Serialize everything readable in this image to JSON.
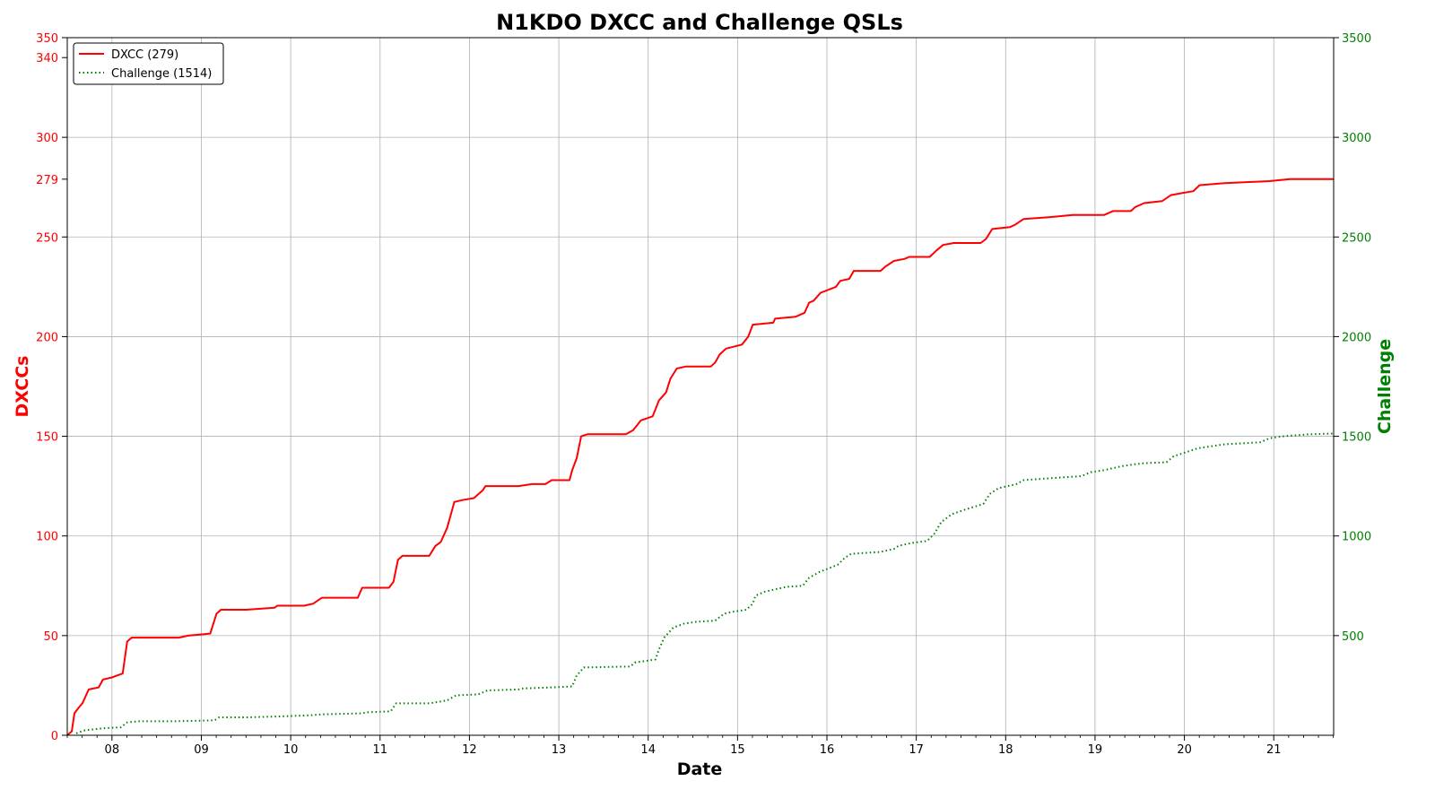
{
  "chart_data": {
    "type": "line",
    "title": "N1KDO DXCC and Challenge QSLs",
    "xlabel": "Date",
    "ylabel_left": "DXCCs",
    "ylabel_right": "Challenge",
    "xlim": [
      7.5,
      21.67
    ],
    "ylim_left": [
      0,
      350
    ],
    "ylim_right": [
      0,
      3500
    ],
    "x_ticks": [
      {
        "value": 8,
        "label": "08"
      },
      {
        "value": 9,
        "label": "09"
      },
      {
        "value": 10,
        "label": "10"
      },
      {
        "value": 11,
        "label": "11"
      },
      {
        "value": 12,
        "label": "12"
      },
      {
        "value": 13,
        "label": "13"
      },
      {
        "value": 14,
        "label": "14"
      },
      {
        "value": 15,
        "label": "15"
      },
      {
        "value": 16,
        "label": "16"
      },
      {
        "value": 17,
        "label": "17"
      },
      {
        "value": 18,
        "label": "18"
      },
      {
        "value": 19,
        "label": "19"
      },
      {
        "value": 20,
        "label": "20"
      },
      {
        "value": 21,
        "label": "21"
      }
    ],
    "y_ticks_left": [
      {
        "value": 0,
        "label": "0"
      },
      {
        "value": 50,
        "label": "50"
      },
      {
        "value": 100,
        "label": "100"
      },
      {
        "value": 150,
        "label": "150"
      },
      {
        "value": 200,
        "label": "200"
      },
      {
        "value": 250,
        "label": "250"
      },
      {
        "value": 279,
        "label": "279"
      },
      {
        "value": 300,
        "label": "300"
      },
      {
        "value": 340,
        "label": "340"
      },
      {
        "value": 350,
        "label": "350"
      }
    ],
    "y_ticks_right": [
      {
        "value": 500,
        "label": "500"
      },
      {
        "value": 1000,
        "label": "1000"
      },
      {
        "value": 1500,
        "label": "1500"
      },
      {
        "value": 2000,
        "label": "2000"
      },
      {
        "value": 2500,
        "label": "2500"
      },
      {
        "value": 3000,
        "label": "3000"
      },
      {
        "value": 3500,
        "label": "3500"
      }
    ],
    "grid": true,
    "legend_position": "top-left",
    "series": [
      {
        "name": "DXCC (279)",
        "axis": "left",
        "color": "#ff0000",
        "style": "solid",
        "points": [
          [
            7.5,
            0
          ],
          [
            7.55,
            2
          ],
          [
            7.58,
            11
          ],
          [
            7.63,
            14
          ],
          [
            7.67,
            16
          ],
          [
            7.7,
            19
          ],
          [
            7.74,
            23
          ],
          [
            7.85,
            24
          ],
          [
            7.9,
            28
          ],
          [
            8.0,
            29
          ],
          [
            8.12,
            31
          ],
          [
            8.17,
            47
          ],
          [
            8.22,
            49
          ],
          [
            8.5,
            49
          ],
          [
            8.75,
            49
          ],
          [
            8.85,
            50
          ],
          [
            9.1,
            51
          ],
          [
            9.17,
            61
          ],
          [
            9.22,
            63
          ],
          [
            9.5,
            63
          ],
          [
            9.82,
            64
          ],
          [
            9.85,
            65
          ],
          [
            10.15,
            65
          ],
          [
            10.25,
            66
          ],
          [
            10.35,
            69
          ],
          [
            10.75,
            69
          ],
          [
            10.8,
            74
          ],
          [
            11.1,
            74
          ],
          [
            11.15,
            77
          ],
          [
            11.2,
            88
          ],
          [
            11.25,
            90
          ],
          [
            11.55,
            90
          ],
          [
            11.62,
            95
          ],
          [
            11.68,
            97
          ],
          [
            11.75,
            104
          ],
          [
            11.8,
            112
          ],
          [
            11.83,
            117
          ],
          [
            11.92,
            118
          ],
          [
            12.05,
            119
          ],
          [
            12.15,
            123
          ],
          [
            12.18,
            125
          ],
          [
            12.55,
            125
          ],
          [
            12.7,
            126
          ],
          [
            12.85,
            126
          ],
          [
            12.92,
            128
          ],
          [
            13.12,
            128
          ],
          [
            13.15,
            133
          ],
          [
            13.2,
            139
          ],
          [
            13.25,
            150
          ],
          [
            13.32,
            151
          ],
          [
            13.75,
            151
          ],
          [
            13.83,
            153
          ],
          [
            13.92,
            158
          ],
          [
            14.05,
            160
          ],
          [
            14.12,
            168
          ],
          [
            14.2,
            172
          ],
          [
            14.25,
            179
          ],
          [
            14.32,
            184
          ],
          [
            14.42,
            185
          ],
          [
            14.7,
            185
          ],
          [
            14.75,
            187
          ],
          [
            14.8,
            191
          ],
          [
            14.87,
            194
          ],
          [
            15.05,
            196
          ],
          [
            15.12,
            200
          ],
          [
            15.17,
            206
          ],
          [
            15.4,
            207
          ],
          [
            15.42,
            209
          ],
          [
            15.65,
            210
          ],
          [
            15.75,
            212
          ],
          [
            15.8,
            217
          ],
          [
            15.85,
            218
          ],
          [
            15.93,
            222
          ],
          [
            16.1,
            225
          ],
          [
            16.15,
            228
          ],
          [
            16.25,
            229
          ],
          [
            16.3,
            233
          ],
          [
            16.6,
            233
          ],
          [
            16.65,
            235
          ],
          [
            16.75,
            238
          ],
          [
            16.87,
            239
          ],
          [
            16.92,
            240
          ],
          [
            17.15,
            240
          ],
          [
            17.22,
            243
          ],
          [
            17.3,
            246
          ],
          [
            17.42,
            247
          ],
          [
            17.72,
            247
          ],
          [
            17.78,
            249
          ],
          [
            17.85,
            254
          ],
          [
            18.05,
            255
          ],
          [
            18.1,
            256
          ],
          [
            18.2,
            259
          ],
          [
            18.5,
            260
          ],
          [
            18.75,
            261
          ],
          [
            19.1,
            261
          ],
          [
            19.2,
            263
          ],
          [
            19.4,
            263
          ],
          [
            19.45,
            265
          ],
          [
            19.55,
            267
          ],
          [
            19.75,
            268
          ],
          [
            19.85,
            271
          ],
          [
            19.97,
            272
          ],
          [
            20.1,
            273
          ],
          [
            20.17,
            276
          ],
          [
            20.45,
            277
          ],
          [
            20.95,
            278
          ],
          [
            21.18,
            279
          ],
          [
            21.67,
            279
          ]
        ]
      },
      {
        "name": "Challenge (1514)",
        "axis": "right",
        "color": "#008000",
        "style": "dotted",
        "points": [
          [
            7.6,
            10
          ],
          [
            7.7,
            25
          ],
          [
            7.9,
            35
          ],
          [
            8.1,
            40
          ],
          [
            8.17,
            65
          ],
          [
            8.3,
            70
          ],
          [
            8.7,
            70
          ],
          [
            9.15,
            75
          ],
          [
            9.2,
            90
          ],
          [
            9.5,
            90
          ],
          [
            9.9,
            95
          ],
          [
            10.2,
            100
          ],
          [
            10.35,
            105
          ],
          [
            10.8,
            110
          ],
          [
            10.85,
            115
          ],
          [
            11.12,
            120
          ],
          [
            11.18,
            160
          ],
          [
            11.55,
            160
          ],
          [
            11.75,
            175
          ],
          [
            11.85,
            200
          ],
          [
            12.1,
            205
          ],
          [
            12.2,
            225
          ],
          [
            12.55,
            230
          ],
          [
            12.6,
            235
          ],
          [
            12.9,
            240
          ],
          [
            13.15,
            245
          ],
          [
            13.2,
            300
          ],
          [
            13.28,
            340
          ],
          [
            13.8,
            345
          ],
          [
            13.85,
            365
          ],
          [
            14.08,
            380
          ],
          [
            14.12,
            430
          ],
          [
            14.18,
            490
          ],
          [
            14.28,
            540
          ],
          [
            14.4,
            560
          ],
          [
            14.55,
            570
          ],
          [
            14.75,
            575
          ],
          [
            14.85,
            610
          ],
          [
            14.95,
            620
          ],
          [
            15.1,
            630
          ],
          [
            15.17,
            660
          ],
          [
            15.2,
            700
          ],
          [
            15.3,
            720
          ],
          [
            15.45,
            735
          ],
          [
            15.55,
            745
          ],
          [
            15.73,
            750
          ],
          [
            15.8,
            790
          ],
          [
            15.92,
            820
          ],
          [
            16.12,
            855
          ],
          [
            16.2,
            890
          ],
          [
            16.27,
            910
          ],
          [
            16.6,
            920
          ],
          [
            16.75,
            935
          ],
          [
            16.8,
            950
          ],
          [
            16.95,
            965
          ],
          [
            17.12,
            975
          ],
          [
            17.2,
            1010
          ],
          [
            17.28,
            1070
          ],
          [
            17.4,
            1110
          ],
          [
            17.6,
            1140
          ],
          [
            17.75,
            1160
          ],
          [
            17.82,
            1210
          ],
          [
            17.92,
            1240
          ],
          [
            18.12,
            1260
          ],
          [
            18.2,
            1280
          ],
          [
            18.5,
            1290
          ],
          [
            18.85,
            1300
          ],
          [
            18.95,
            1320
          ],
          [
            19.1,
            1330
          ],
          [
            19.2,
            1340
          ],
          [
            19.3,
            1350
          ],
          [
            19.45,
            1360
          ],
          [
            19.55,
            1365
          ],
          [
            19.8,
            1370
          ],
          [
            19.88,
            1400
          ],
          [
            19.95,
            1410
          ],
          [
            20.15,
            1440
          ],
          [
            20.45,
            1460
          ],
          [
            20.65,
            1465
          ],
          [
            20.85,
            1470
          ],
          [
            20.95,
            1490
          ],
          [
            21.1,
            1500
          ],
          [
            21.4,
            1510
          ],
          [
            21.67,
            1514
          ]
        ]
      }
    ]
  }
}
